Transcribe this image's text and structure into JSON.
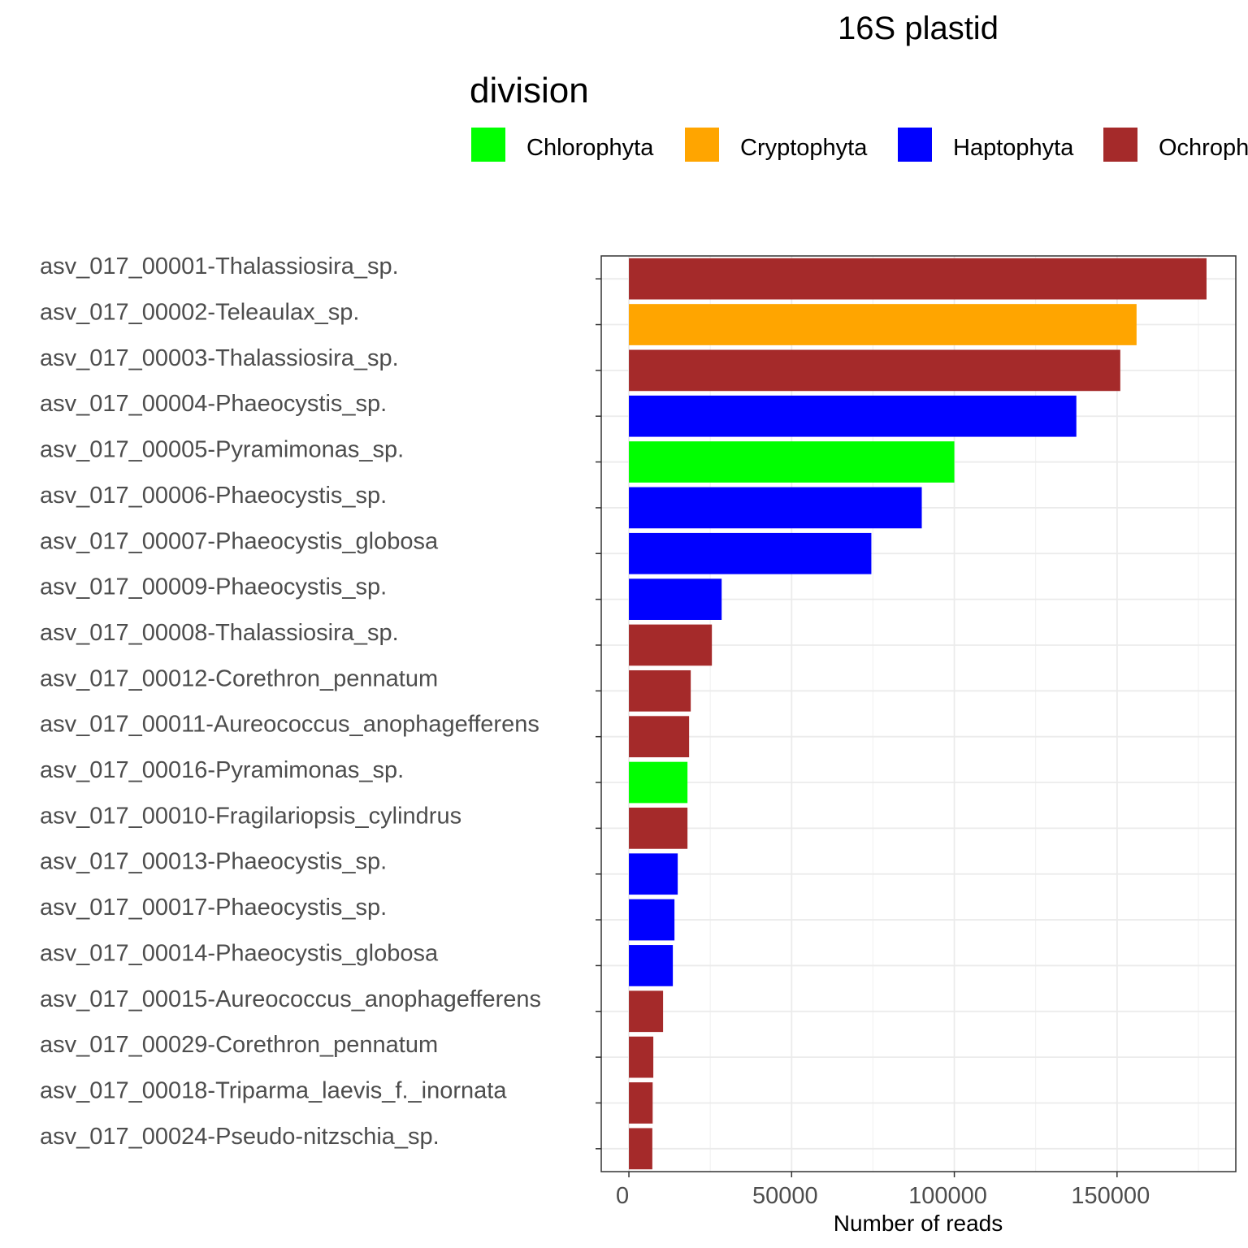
{
  "chart_data": {
    "type": "bar",
    "orientation": "horizontal",
    "title": "16S plastid",
    "xlabel": "Number of reads",
    "ylabel": "",
    "xlim": [
      -8500,
      186500
    ],
    "x_ticks": [
      0,
      50000,
      100000,
      150000
    ],
    "x_tick_labels": [
      "0",
      "50000",
      "100000",
      "150000"
    ],
    "grid": true,
    "legend": {
      "title": "division",
      "position": "top",
      "entries": [
        {
          "label": "Chlorophyta",
          "color": "#00FF00"
        },
        {
          "label": "Cryptophyta",
          "color": "#FFA500"
        },
        {
          "label": "Haptophyta",
          "color": "#0000FF"
        },
        {
          "label": "Ochrophyta",
          "color": "#A52A2A"
        }
      ]
    },
    "categories": [
      "asv_017_00001-Thalassiosira_sp.",
      "asv_017_00002-Teleaulax_sp.",
      "asv_017_00003-Thalassiosira_sp.",
      "asv_017_00004-Phaeocystis_sp.",
      "asv_017_00005-Pyramimonas_sp.",
      "asv_017_00006-Phaeocystis_sp.",
      "asv_017_00007-Phaeocystis_globosa",
      "asv_017_00009-Phaeocystis_sp.",
      "asv_017_00008-Thalassiosira_sp.",
      "asv_017_00012-Corethron_pennatum",
      "asv_017_00011-Aureococcus_anophagefferens",
      "asv_017_00016-Pyramimonas_sp.",
      "asv_017_00010-Fragilariopsis_cylindrus",
      "asv_017_00013-Phaeocystis_sp.",
      "asv_017_00017-Phaeocystis_sp.",
      "asv_017_00014-Phaeocystis_globosa",
      "asv_017_00015-Aureococcus_anophagefferens",
      "asv_017_00029-Corethron_pennatum",
      "asv_017_00018-Triparma_laevis_f._inornata",
      "asv_017_00024-Pseudo-nitzschia_sp."
    ],
    "values": [
      177500,
      156000,
      151000,
      137500,
      100000,
      90000,
      74500,
      28500,
      25500,
      19000,
      18500,
      18000,
      18000,
      15000,
      14000,
      13500,
      10500,
      7500,
      7300,
      7200
    ],
    "divisions": [
      "Ochrophyta",
      "Cryptophyta",
      "Ochrophyta",
      "Haptophyta",
      "Chlorophyta",
      "Haptophyta",
      "Haptophyta",
      "Haptophyta",
      "Ochrophyta",
      "Ochrophyta",
      "Ochrophyta",
      "Chlorophyta",
      "Ochrophyta",
      "Haptophyta",
      "Haptophyta",
      "Haptophyta",
      "Ochrophyta",
      "Ochrophyta",
      "Ochrophyta",
      "Ochrophyta"
    ]
  }
}
